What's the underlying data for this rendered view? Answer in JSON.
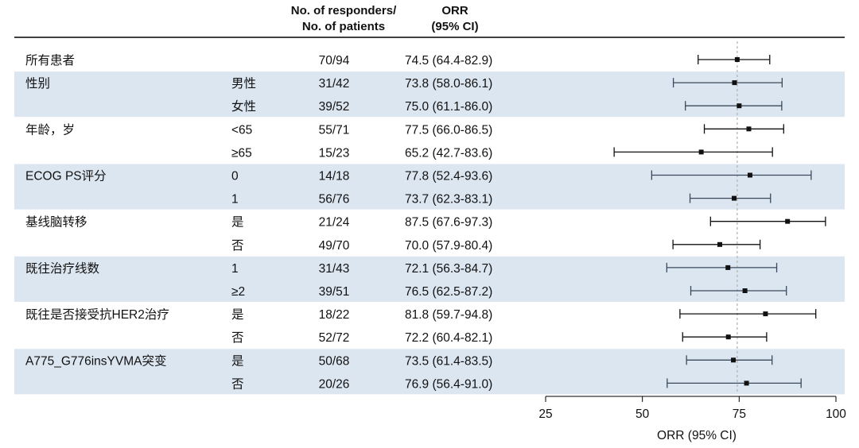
{
  "chart_data": {
    "type": "forest",
    "header": {
      "responders_line1": "No. of responders/",
      "responders_line2": "No. of patients",
      "orr_line1": "ORR",
      "orr_line2": "(95% CI)"
    },
    "rows": [
      {
        "group": "所有患者",
        "sub": "",
        "n": "70/94",
        "ci_text": "74.5 (64.4-82.9)",
        "est": 74.5,
        "lo": 64.4,
        "hi": 82.9,
        "shade": false
      },
      {
        "group": "性别",
        "sub": "男性",
        "n": "31/42",
        "ci_text": "73.8 (58.0-86.1)",
        "est": 73.8,
        "lo": 58.0,
        "hi": 86.1,
        "shade": true
      },
      {
        "group": "",
        "sub": "女性",
        "n": "39/52",
        "ci_text": "75.0 (61.1-86.0)",
        "est": 75.0,
        "lo": 61.1,
        "hi": 86.0,
        "shade": true
      },
      {
        "group": "年龄，岁",
        "sub": "<65",
        "n": "55/71",
        "ci_text": "77.5 (66.0-86.5)",
        "est": 77.5,
        "lo": 66.0,
        "hi": 86.5,
        "shade": false
      },
      {
        "group": "",
        "sub": "≥65",
        "n": "15/23",
        "ci_text": "65.2 (42.7-83.6)",
        "est": 65.2,
        "lo": 42.7,
        "hi": 83.6,
        "shade": false
      },
      {
        "group": "ECOG PS评分",
        "sub": "0",
        "n": "14/18",
        "ci_text": "77.8 (52.4-93.6)",
        "est": 77.8,
        "lo": 52.4,
        "hi": 93.6,
        "shade": true
      },
      {
        "group": "",
        "sub": "1",
        "n": "56/76",
        "ci_text": "73.7 (62.3-83.1)",
        "est": 73.7,
        "lo": 62.3,
        "hi": 83.1,
        "shade": true
      },
      {
        "group": "基线脑转移",
        "sub": "是",
        "n": "21/24",
        "ci_text": "87.5 (67.6-97.3)",
        "est": 87.5,
        "lo": 67.6,
        "hi": 97.3,
        "shade": false
      },
      {
        "group": "",
        "sub": "否",
        "n": "49/70",
        "ci_text": "70.0 (57.9-80.4)",
        "est": 70.0,
        "lo": 57.9,
        "hi": 80.4,
        "shade": false
      },
      {
        "group": "既往治疗线数",
        "sub": "1",
        "n": "31/43",
        "ci_text": "72.1 (56.3-84.7)",
        "est": 72.1,
        "lo": 56.3,
        "hi": 84.7,
        "shade": true
      },
      {
        "group": "",
        "sub": "≥2",
        "n": "39/51",
        "ci_text": "76.5 (62.5-87.2)",
        "est": 76.5,
        "lo": 62.5,
        "hi": 87.2,
        "shade": true
      },
      {
        "group": "既往是否接受抗HER2治疗",
        "sub": "是",
        "n": "18/22",
        "ci_text": "81.8 (59.7-94.8)",
        "est": 81.8,
        "lo": 59.7,
        "hi": 94.8,
        "shade": false
      },
      {
        "group": "",
        "sub": "否",
        "n": "52/72",
        "ci_text": "72.2 (60.4-82.1)",
        "est": 72.2,
        "lo": 60.4,
        "hi": 82.1,
        "shade": false
      },
      {
        "group": "A775_G776insYVMA突变",
        "sub": "是",
        "n": "50/68",
        "ci_text": "73.5 (61.4-83.5)",
        "est": 73.5,
        "lo": 61.4,
        "hi": 83.5,
        "shade": true
      },
      {
        "group": "",
        "sub": "否",
        "n": "20/26",
        "ci_text": "76.9 (56.4-91.0)",
        "est": 76.9,
        "lo": 56.4,
        "hi": 91.0,
        "shade": true
      }
    ],
    "x_axis": {
      "label": "ORR (95% CI)",
      "min": 25,
      "max": 100,
      "ticks": [
        25,
        50,
        75,
        100
      ]
    },
    "reference_line": 74.5,
    "colors": {
      "shade": "#dce6f1",
      "ci_line_shaded": "#3a4a5c",
      "ci_line": "#111111",
      "marker": "#111111",
      "reference": "#b5b5b5"
    }
  }
}
